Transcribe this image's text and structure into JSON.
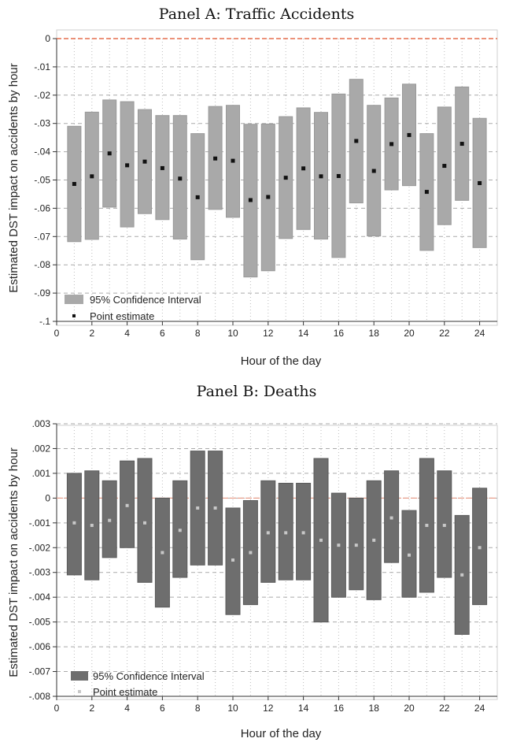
{
  "chart_data": [
    {
      "type": "scatter",
      "title": "Panel A: Traffic Accidents",
      "xlabel": "Hour of the day",
      "ylabel": "Estimated DST impact on accidents by hour",
      "xlim": [
        0,
        25
      ],
      "ylim": [
        -0.1,
        0
      ],
      "xticks": [
        "0",
        "2",
        "4",
        "6",
        "8",
        "10",
        "12",
        "14",
        "16",
        "18",
        "20",
        "22",
        "24"
      ],
      "yticks": [
        "0",
        "-.01",
        "-.02",
        "-.03",
        "-.04",
        "-.05",
        "-.06",
        "-.07",
        "-.08",
        "-.09",
        "-.1"
      ],
      "ytick_values": [
        0,
        -0.01,
        -0.02,
        -0.03,
        -0.04,
        -0.05,
        -0.06,
        -0.07,
        -0.08,
        -0.09,
        -0.1
      ],
      "reference_line": 0,
      "legend": [
        "95% Confidence Interval",
        "Point estimate"
      ],
      "legend_position": "bottom-left",
      "series": [
        {
          "name": "95% Confidence Interval",
          "lower": [
            -0.0718,
            -0.071,
            -0.0596,
            -0.0666,
            -0.0619,
            -0.064,
            -0.0709,
            -0.0782,
            -0.0604,
            -0.0632,
            -0.0843,
            -0.0821,
            -0.0707,
            -0.0675,
            -0.0709,
            -0.0774,
            -0.0581,
            -0.0698,
            -0.0535,
            -0.052,
            -0.0749,
            -0.0658,
            -0.0572,
            -0.0739
          ],
          "upper": [
            -0.031,
            -0.026,
            -0.0217,
            -0.0223,
            -0.0251,
            -0.0272,
            -0.0272,
            -0.0336,
            -0.024,
            -0.0236,
            -0.0303,
            -0.0302,
            -0.0276,
            -0.0245,
            -0.0261,
            -0.0196,
            -0.0144,
            -0.0236,
            -0.021,
            -0.0161,
            -0.0336,
            -0.0242,
            -0.0171,
            -0.0282
          ]
        },
        {
          "name": "Point estimate",
          "x": [
            1,
            2,
            3,
            4,
            5,
            6,
            7,
            8,
            9,
            10,
            11,
            12,
            13,
            14,
            15,
            16,
            17,
            18,
            19,
            20,
            21,
            22,
            23,
            24
          ],
          "values": [
            -0.0514,
            -0.0487,
            -0.0406,
            -0.0448,
            -0.0435,
            -0.0458,
            -0.0495,
            -0.0561,
            -0.0424,
            -0.0432,
            -0.0571,
            -0.056,
            -0.0492,
            -0.0459,
            -0.0487,
            -0.0486,
            -0.0362,
            -0.0468,
            -0.0373,
            -0.0341,
            -0.0542,
            -0.045,
            -0.0372,
            -0.0511
          ]
        }
      ]
    },
    {
      "type": "scatter",
      "title": "Panel B: Deaths",
      "xlabel": "Hour of the day",
      "ylabel": "Estimated DST impact on accidents by hour",
      "xlim": [
        0,
        25
      ],
      "ylim": [
        -0.008,
        0.003
      ],
      "xticks": [
        "0",
        "2",
        "4",
        "6",
        "8",
        "10",
        "12",
        "14",
        "16",
        "18",
        "20",
        "22",
        "24"
      ],
      "yticks": [
        ".003",
        ".002",
        ".001",
        "0",
        "-.001",
        "-.002",
        "-.003",
        "-.004",
        "-.005",
        "-.006",
        "-.007",
        "-.008"
      ],
      "ytick_values": [
        0.003,
        0.002,
        0.001,
        0,
        -0.001,
        -0.002,
        -0.003,
        -0.004,
        -0.005,
        -0.006,
        -0.007,
        -0.008
      ],
      "reference_line": 0,
      "legend": [
        "95% Confidence Interval",
        "Point estimate"
      ],
      "legend_position": "bottom-left",
      "series": [
        {
          "name": "95% Confidence Interval",
          "lower": [
            -0.0031,
            -0.0033,
            -0.0024,
            -0.002,
            -0.0034,
            -0.0044,
            -0.0032,
            -0.0027,
            -0.0027,
            -0.0047,
            -0.0043,
            -0.0034,
            -0.0033,
            -0.0033,
            -0.005,
            -0.004,
            -0.0037,
            -0.0041,
            -0.0026,
            -0.004,
            -0.0038,
            -0.0032,
            -0.0055,
            -0.0043
          ],
          "upper": [
            0.001,
            0.0011,
            0.0007,
            0.0015,
            0.0016,
            0.0,
            0.0007,
            0.0019,
            0.0019,
            -0.0004,
            -0.0001,
            0.0007,
            0.0006,
            0.0006,
            0.0016,
            0.0002,
            -0.0,
            0.0007,
            0.0011,
            -0.0005,
            0.0016,
            0.0011,
            -0.0007,
            0.0004
          ]
        },
        {
          "name": "Point estimate",
          "x": [
            1,
            2,
            3,
            4,
            5,
            6,
            7,
            8,
            9,
            10,
            11,
            12,
            13,
            14,
            15,
            16,
            17,
            18,
            19,
            20,
            21,
            22,
            23,
            24
          ],
          "values": [
            -0.001,
            -0.0011,
            -0.0009,
            -0.0003,
            -0.001,
            -0.0022,
            -0.0013,
            -0.0004,
            -0.0004,
            -0.0025,
            -0.0022,
            -0.0014,
            -0.0014,
            -0.0014,
            -0.0017,
            -0.0019,
            -0.0019,
            -0.0017,
            -0.0008,
            -0.0023,
            -0.0011,
            -0.0011,
            -0.0031,
            -0.002
          ]
        }
      ]
    }
  ]
}
